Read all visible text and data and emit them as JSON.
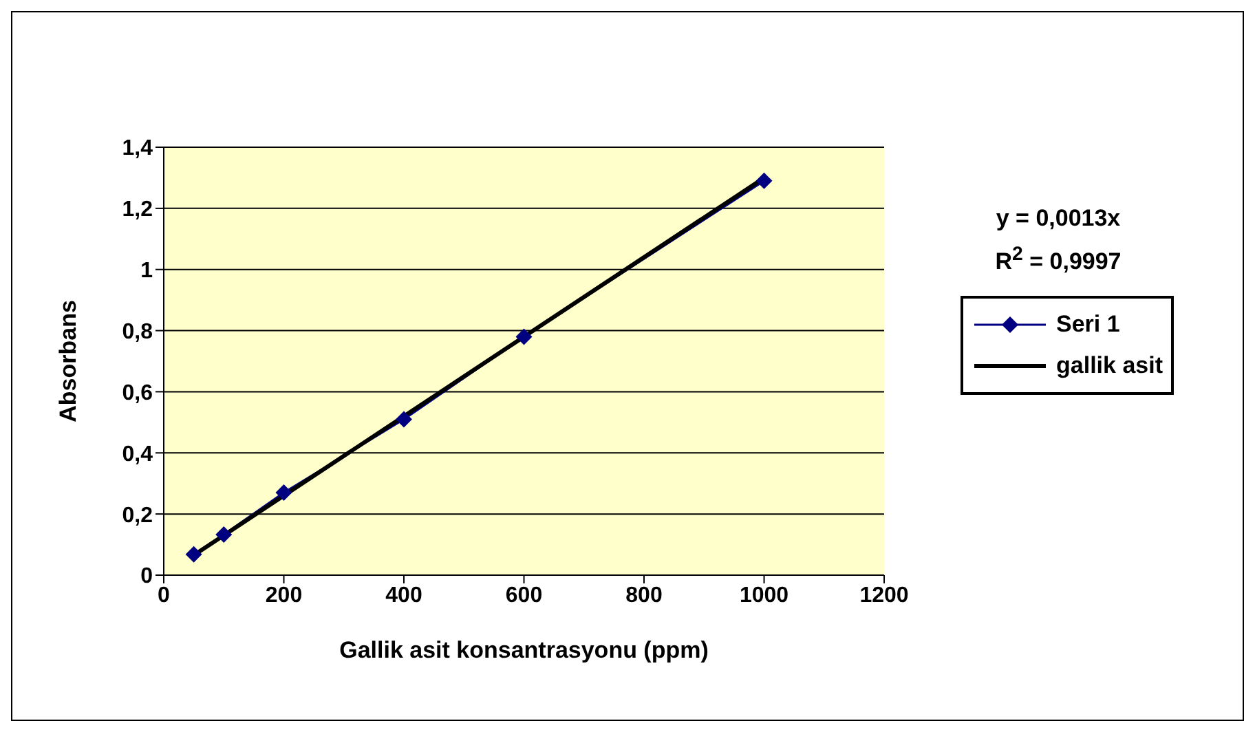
{
  "chart_data": {
    "type": "line",
    "xlabel": "Gallik asit konsantrasyonu (ppm)",
    "ylabel": "Absorbans",
    "xlim": [
      0,
      1200
    ],
    "xticks": [
      0,
      200,
      400,
      600,
      800,
      1000,
      1200
    ],
    "ylim": [
      0,
      1.4
    ],
    "yticks": [
      0,
      {
        "value": 0.2,
        "label": "0,2"
      },
      {
        "value": 0.4,
        "label": "0,4"
      },
      {
        "value": 0.6,
        "label": "0,6"
      },
      {
        "value": 0.8,
        "label": "0,8"
      },
      1,
      {
        "value": 1.2,
        "label": "1,2"
      },
      {
        "value": 1.4,
        "label": "1,4"
      }
    ],
    "grid": "y",
    "legend": "right",
    "line_style": "solid",
    "annotations": [
      "y = 0,0013x",
      "R$^{2}$ = 0,9997"
    ],
    "series": [
      {
        "name": "Seri 1",
        "color": "#000080",
        "marker": "diamond",
        "x": [
          50,
          100,
          200,
          400,
          600,
          1000
        ],
        "values": [
          0.068,
          0.133,
          0.27,
          0.51,
          0.78,
          1.29
        ]
      },
      {
        "name": "gallik asit",
        "type": "line",
        "color": "#000000",
        "marker": "none",
        "x": [
          50,
          1000
        ],
        "values": [
          0.065,
          1.3
        ]
      }
    ]
  }
}
